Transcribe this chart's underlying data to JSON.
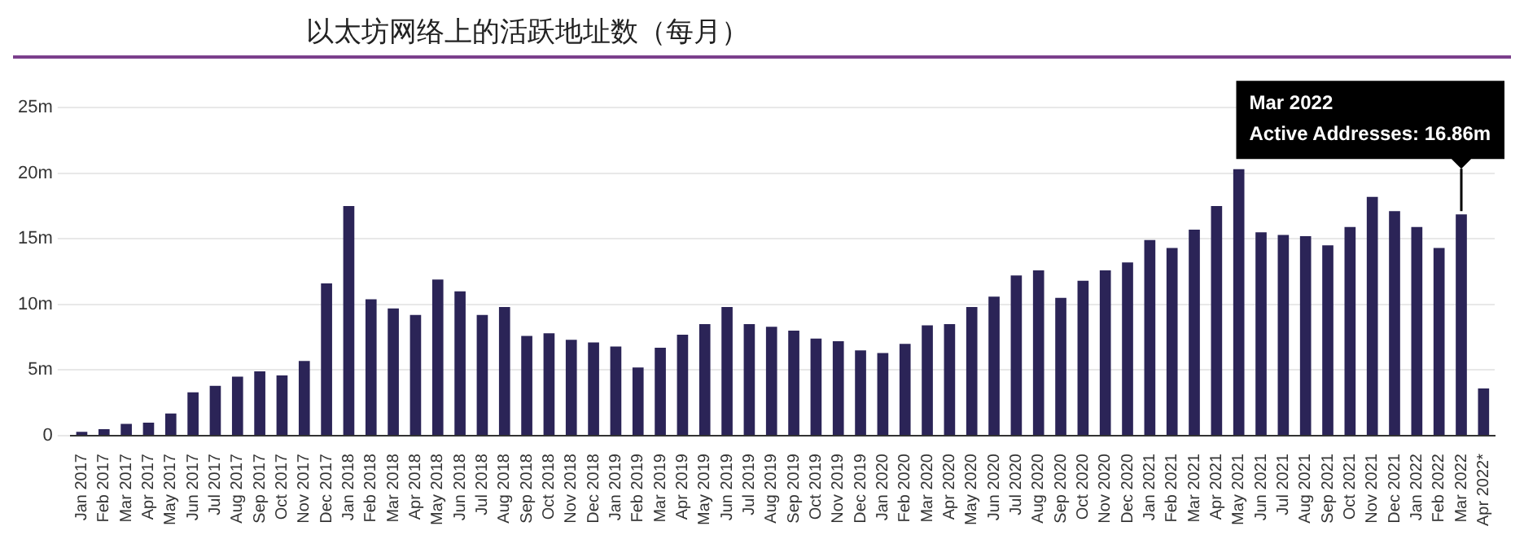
{
  "chart_data": {
    "type": "bar",
    "title": "以太坊网络上的活跃地址数（每月）",
    "categories": [
      "Jan 2017",
      "Feb 2017",
      "Mar 2017",
      "Apr 2017",
      "May 2017",
      "Jun 2017",
      "Jul 2017",
      "Aug 2017",
      "Sep 2017",
      "Oct 2017",
      "Nov 2017",
      "Dec 2017",
      "Jan 2018",
      "Feb 2018",
      "Mar 2018",
      "Apr 2018",
      "May 2018",
      "Jun 2018",
      "Jul 2018",
      "Aug 2018",
      "Sep 2018",
      "Oct 2018",
      "Nov 2018",
      "Dec 2018",
      "Jan 2019",
      "Feb 2019",
      "Mar 2019",
      "Apr 2019",
      "May 2019",
      "Jun 2019",
      "Jul 2019",
      "Aug 2019",
      "Sep 2019",
      "Oct 2019",
      "Nov 2019",
      "Dec 2019",
      "Jan 2020",
      "Feb 2020",
      "Mar 2020",
      "Apr 2020",
      "May 2020",
      "Jun 2020",
      "Jul 2020",
      "Aug 2020",
      "Sep 2020",
      "Oct 2020",
      "Nov 2020",
      "Dec 2020",
      "Jan 2021",
      "Feb 2021",
      "Mar 2021",
      "Apr 2021",
      "May 2021",
      "Jun 2021",
      "Jul 2021",
      "Aug 2021",
      "Sep 2021",
      "Oct 2021",
      "Nov 2021",
      "Dec 2021",
      "Jan 2022",
      "Feb 2022",
      "Mar 2022",
      "Apr 2022*"
    ],
    "values": [
      0.3,
      0.5,
      0.9,
      1.0,
      1.7,
      3.3,
      3.8,
      4.5,
      4.9,
      4.6,
      5.7,
      11.6,
      17.5,
      10.4,
      9.7,
      9.2,
      11.9,
      11.0,
      9.2,
      9.8,
      7.6,
      7.8,
      7.3,
      7.1,
      6.8,
      5.2,
      6.7,
      7.7,
      8.5,
      9.8,
      8.5,
      8.3,
      8.0,
      7.4,
      7.2,
      6.5,
      6.3,
      7.0,
      8.4,
      8.5,
      9.8,
      10.6,
      12.2,
      12.6,
      10.5,
      11.8,
      12.6,
      13.2,
      14.9,
      14.3,
      15.7,
      17.5,
      20.3,
      15.5,
      15.3,
      15.2,
      14.5,
      15.9,
      18.2,
      17.1,
      15.9,
      14.3,
      16.86,
      3.6
    ],
    "color": "#2b2457",
    "ylim": [
      0,
      25
    ],
    "yticks": [
      {
        "value": 0,
        "label": "0"
      },
      {
        "value": 5,
        "label": "5m"
      },
      {
        "value": 10,
        "label": "10m"
      },
      {
        "value": 15,
        "label": "15m"
      },
      {
        "value": 20,
        "label": "20m"
      },
      {
        "value": 25,
        "label": "25m"
      }
    ],
    "grid": "y",
    "legend": false,
    "annotations": [
      {
        "text": "Mar 2022\nActive Addresses: 16.86m",
        "x": "Mar 2022",
        "y": 16.86
      }
    ]
  }
}
